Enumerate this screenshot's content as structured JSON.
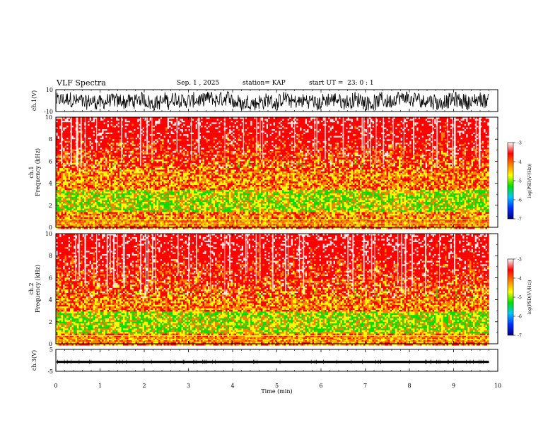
{
  "header": {
    "title": "VLF Spectra",
    "date": "Sep. 1 , 2025",
    "station": "station= KAP",
    "start": "start UT =  23: 0 : 1"
  },
  "colors": {
    "scale": [
      "#000080",
      "#0030ff",
      "#00c8ff",
      "#00e000",
      "#ffff00",
      "#ff8000",
      "#ff0000",
      "#ffffff"
    ]
  },
  "chart_data": [
    {
      "type": "line",
      "panel": "ch1-waveform",
      "ylabel": "ch.1(V)",
      "ylim": [
        -10,
        10
      ],
      "yticks": [
        "10",
        "-10"
      ],
      "xlim": [
        0,
        10
      ],
      "x_extent": [
        0,
        9.8
      ],
      "amplitude_range": [
        -9,
        8
      ]
    },
    {
      "type": "heatmap",
      "panel": "ch1-spectrogram",
      "ylabel_lines": [
        "ch.1",
        "Frequency (kHz)"
      ],
      "ylim": [
        0,
        10
      ],
      "yticks": [
        "0",
        "2",
        "4",
        "6",
        "8",
        "10"
      ],
      "xlim": [
        0,
        10
      ],
      "x_extent": [
        0,
        9.8
      ],
      "band_upper_khz": 5.2,
      "core_band_khz": [
        1.5,
        3.5
      ],
      "colorbar": {
        "label": "log(PSD(V²/Hz))",
        "range": [
          -7,
          -3
        ],
        "ticks": [
          "-3",
          "-4",
          "-5",
          "-6",
          "-7"
        ]
      }
    },
    {
      "type": "heatmap",
      "panel": "ch2-spectrogram",
      "ylabel_lines": [
        "ch.2",
        "Frequency (kHz)"
      ],
      "ylim": [
        0,
        10
      ],
      "yticks": [
        "0",
        "2",
        "4",
        "6",
        "8",
        "10"
      ],
      "xlim": [
        0,
        10
      ],
      "x_extent": [
        0,
        9.8
      ],
      "band_upper_khz": 4.2,
      "core_band_khz": [
        1.0,
        3.0
      ],
      "colorbar": {
        "label": "log(PSD(V²/Hz))",
        "range": [
          -7,
          -3
        ],
        "ticks": [
          "-3",
          "-4",
          "-5",
          "-6",
          "-7"
        ]
      }
    },
    {
      "type": "line",
      "panel": "ch3-waveform",
      "ylabel": "ch.3(V)",
      "ylim": [
        -5,
        5
      ],
      "yticks": [
        "5",
        "-5"
      ],
      "xlim": [
        0,
        10
      ],
      "x_extent": [
        0,
        9.8
      ],
      "amplitude_range": [
        -1.2,
        -0.2
      ],
      "xlabel": "Time (min)",
      "xticks": [
        "0",
        "1",
        "2",
        "3",
        "4",
        "5",
        "6",
        "7",
        "8",
        "9",
        "10"
      ]
    }
  ]
}
